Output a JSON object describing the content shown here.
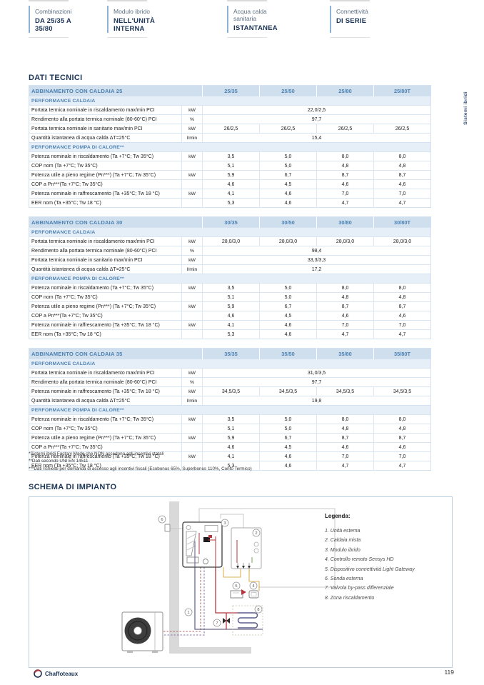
{
  "colors": {
    "accent_blue": "#8fb3d4",
    "navy": "#1c3556",
    "table_blue": "#4d82b4",
    "table_header_bg": "#cfdfee",
    "table_section_bg": "#e6eff7",
    "table_border": "#d3e2f0",
    "pipe_red": "#b5373d",
    "pipe_dark": "#5c5c8c",
    "pipe_yellow": "#ddb257",
    "wall_gray": "#d9d9d9"
  },
  "side_tab": "Sistemi ibridi",
  "top_features": [
    {
      "title": "Combinazioni",
      "subtitle": "DA 25/35 A 35/80"
    },
    {
      "title": "Modulo ibrido",
      "subtitle": "NELL'UNITÀ INTERNA"
    },
    {
      "title": "Acqua calda sanitaria",
      "subtitle": "ISTANTANEA"
    },
    {
      "title": "Connettività",
      "subtitle": "DI SERIE"
    }
  ],
  "dati_tecnici_title": "DATI TECNICI",
  "tables": [
    {
      "header": "ABBINAMENTO CON CALDAIA 25",
      "columns": [
        "25/35",
        "25/50",
        "25/80",
        "25/80T"
      ],
      "sections": [
        {
          "label": "PERFORMANCE CALDAIA",
          "rows": [
            {
              "label": "Portata termica nominale in riscaldamento max/min PCI",
              "unit": "kW",
              "span": "22,0/2,5"
            },
            {
              "label": "Rendimento alla portata termica nominale (80-60°C) PCI",
              "unit": "%",
              "span": "97,7"
            },
            {
              "label": "Portata termica nominale in sanitario max/min PCI",
              "unit": "kW",
              "values": [
                "26/2,5",
                "26/2,5",
                "26/2,5",
                "26/2,5"
              ]
            },
            {
              "label": "Quantità istantanea di acqua calda ΔT=25°C",
              "unit": "l/min",
              "span": "15,4"
            }
          ]
        },
        {
          "label": "PERFORMANCE POMPA DI CALORE**",
          "rows": [
            {
              "label": "Potenza nominale in riscaldamento (Ta +7°C; Tw 35°C)",
              "unit": "kW",
              "values": [
                "3,5",
                "5,0",
                "8,0",
                "8,0"
              ]
            },
            {
              "label": "COP nom (Ta +7°C; Tw 35°C)",
              "unit": "",
              "values": [
                "5,1",
                "5,0",
                "4,8",
                "4,8"
              ]
            },
            {
              "label": "Potenza utile a pieno regime (Pn***) (Ta +7°C; Tw 35°C)",
              "unit": "kW",
              "values": [
                "5,9",
                "6,7",
                "8,7",
                "8,7"
              ]
            },
            {
              "label": "COP a Pn***(Ta +7°C; Tw 35°C)",
              "unit": "",
              "values": [
                "4,6",
                "4,5",
                "4,6",
                "4,6"
              ]
            },
            {
              "label": "Potenza nominale in raffrescamento (Ta +35°C; Tw 18 °C)",
              "unit": "kW",
              "values": [
                "4,1",
                "4,6",
                "7,0",
                "7,0"
              ]
            },
            {
              "label": "EER nom (Ta +35°C; Tw 18 °C)",
              "unit": "",
              "values": [
                "5,3",
                "4,6",
                "4,7",
                "4,7"
              ]
            }
          ]
        }
      ]
    },
    {
      "header": "ABBINAMENTO CON CALDAIA 30",
      "columns": [
        "30/35",
        "30/50",
        "30/80",
        "30/80T"
      ],
      "sections": [
        {
          "label": "PERFORMANCE CALDAIA",
          "rows": [
            {
              "label": "Portata termica nominale in riscaldamento max/min PCI",
              "unit": "kW",
              "values": [
                "28,0/3,0",
                "28,0/3,0",
                "28,0/3,0",
                "28,0/3,0"
              ]
            },
            {
              "label": "Rendimento alla portata termica nominale (80-60°C) PCI",
              "unit": "%",
              "span": "98,4"
            },
            {
              "label": "Portata termica nominale in sanitario max/min PCI",
              "unit": "kW",
              "span": "33,3/3,3"
            },
            {
              "label": "Quantità istantanea di acqua calda ΔT=25°C",
              "unit": "l/min",
              "span": "17,2"
            }
          ]
        },
        {
          "label": "PERFORMANCE POMPA DI CALORE**",
          "rows": [
            {
              "label": "Potenza nominale in riscaldamento (Ta +7°C; Tw 35°C)",
              "unit": "kW",
              "values": [
                "3,5",
                "5,0",
                "8,0",
                "8,0"
              ]
            },
            {
              "label": "COP nom (Ta +7°C; Tw 35°C)",
              "unit": "",
              "values": [
                "5,1",
                "5,0",
                "4,8",
                "4,8"
              ]
            },
            {
              "label": "Potenza utile a pieno regime (Pn***) (Ta +7°C; Tw 35°C)",
              "unit": "kW",
              "values": [
                "5,9",
                "6,7",
                "8,7",
                "8,7"
              ]
            },
            {
              "label": "COP a Pn***(Ta +7°C; Tw 35°C)",
              "unit": "",
              "values": [
                "4,6",
                "4,5",
                "4,6",
                "4,6"
              ]
            },
            {
              "label": "Potenza nominale in raffrescamento (Ta +35°C; Tw 18 °C)",
              "unit": "kW",
              "values": [
                "4,1",
                "4,6",
                "7,0",
                "7,0"
              ]
            },
            {
              "label": "EER nom (Ta +35°C; Tw 18 °C)",
              "unit": "",
              "values": [
                "5,3",
                "4,6",
                "4,7",
                "4,7"
              ]
            }
          ]
        }
      ]
    },
    {
      "header": "ABBINAMENTO CON CALDAIA 35",
      "columns": [
        "35/35",
        "35/50",
        "35/80",
        "35/80T"
      ],
      "sections": [
        {
          "label": "PERFORMANCE CALDAIA",
          "rows": [
            {
              "label": "Portata termica nominale in riscaldamento max/min PCI",
              "unit": "kW",
              "span": "31,0/3,5"
            },
            {
              "label": "Rendimento alla portata termica nominale (80-60°C) PCI",
              "unit": "%",
              "span": "97,7"
            },
            {
              "label": "Potenza nominale in raffrescamento (Ta +35°C; Tw 18 °C)",
              "unit": "kW",
              "values": [
                "34,5/3,5",
                "34,5/3,5",
                "34,5/3,5",
                "34,5/3,5"
              ]
            },
            {
              "label": "Quantità istantanea di acqua calda ΔT=25°C",
              "unit": "l/min",
              "span": "19,8"
            }
          ]
        },
        {
          "label": "PERFORMANCE POMPA DI CALORE**",
          "rows": [
            {
              "label": "Potenza nominale in riscaldamento (Ta +7°C; Tw 35°C)",
              "unit": "kW",
              "values": [
                "3,5",
                "5,0",
                "8,0",
                "8,0"
              ]
            },
            {
              "label": "COP nom (Ta +7°C; Tw 35°C)",
              "unit": "",
              "values": [
                "5,1",
                "5,0",
                "4,8",
                "4,8"
              ]
            },
            {
              "label": "Potenza utile a pieno regime (Pn***) (Ta +7°C; Tw 35°C)",
              "unit": "kW",
              "values": [
                "5,9",
                "6,7",
                "8,7",
                "8,7"
              ]
            },
            {
              "label": "COP a Pn***(Ta +7°C; Tw 35°C)",
              "unit": "",
              "values": [
                "4,6",
                "4,5",
                "4,6",
                "4,6"
              ]
            },
            {
              "label": "Potenza nominale in raffrescamento (Ta +35°C; Tw 18 °C)",
              "unit": "kW",
              "values": [
                "4,1",
                "4,6",
                "7,0",
                "7,0"
              ]
            },
            {
              "label": "EER nom (Ta +35°C; Tw 18 °C)",
              "unit": "",
              "values": [
                "5,3",
                "4,6",
                "4,7",
                "4,7"
              ]
            }
          ]
        }
      ]
    }
  ],
  "footnotes": [
    "*Sistemi ibridi Factory Made che NON accedono agli incentivi statali",
    "**Dati secondo UNI EN 14511",
    "***Dati richiesti per domanda di accesso agli incentivi fiscali (Ecobonus 65%, Superbonus 110%, Conto Termico)"
  ],
  "schema": {
    "title": "SCHEMA DI IMPIANTO",
    "legend_title": "Legenda:",
    "legend": [
      {
        "n": "1.",
        "label": "Unità esterna"
      },
      {
        "n": "2.",
        "label": "Caldaia mista"
      },
      {
        "n": "3.",
        "label": "Modulo ibrido"
      },
      {
        "n": "4.",
        "label": "Controllo remoto Sensys HD"
      },
      {
        "n": "5.",
        "label": "Dispositivo connettività Light Gateway"
      },
      {
        "n": "6.",
        "label": "Sonda esterna"
      },
      {
        "n": "7.",
        "label": "Valvola by-pass differenziale"
      },
      {
        "n": "8.",
        "label": "Zona riscaldamento"
      }
    ],
    "callouts": [
      "1",
      "2",
      "3",
      "4",
      "5",
      "6",
      "7",
      "8"
    ]
  },
  "footer": {
    "brand": "Chaffoteaux",
    "page_number": "119"
  }
}
